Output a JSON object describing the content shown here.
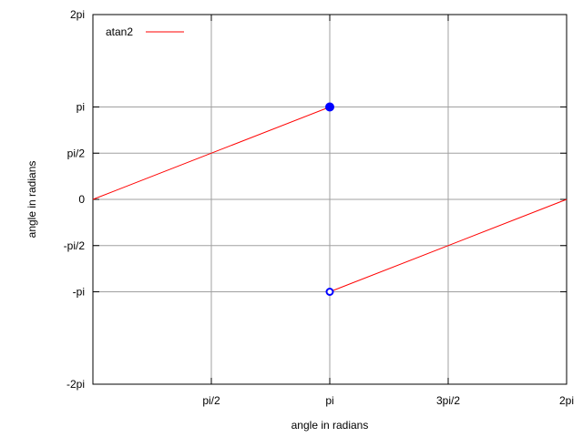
{
  "chart_data": {
    "type": "line",
    "title": "",
    "xlabel": "angle in radians",
    "ylabel": "angle in radians",
    "xlim": [
      0,
      6.283185307
    ],
    "ylim": [
      -6.283185307,
      6.283185307
    ],
    "grid": true,
    "legend_position": "top-left",
    "x_ticks": [
      {
        "value": 1.570796327,
        "label": "pi/2"
      },
      {
        "value": 3.141592654,
        "label": "pi"
      },
      {
        "value": 4.71238898,
        "label": "3pi/2"
      },
      {
        "value": 6.283185307,
        "label": "2pi"
      }
    ],
    "y_ticks": [
      {
        "value": 6.283185307,
        "label": "2pi"
      },
      {
        "value": 3.141592654,
        "label": "pi"
      },
      {
        "value": 1.570796327,
        "label": "pi/2"
      },
      {
        "value": 0,
        "label": "0"
      },
      {
        "value": -1.570796327,
        "label": "-pi/2"
      },
      {
        "value": -3.141592654,
        "label": "-pi"
      },
      {
        "value": -6.283185307,
        "label": "-2pi"
      }
    ],
    "series": [
      {
        "name": "atan2",
        "color": "#ff0000",
        "segments": [
          [
            [
              0,
              0
            ],
            [
              3.141592654,
              3.141592654
            ]
          ],
          [
            [
              3.141592654,
              -3.141592654
            ],
            [
              6.283185307,
              0
            ]
          ]
        ]
      }
    ],
    "markers": [
      {
        "x": 3.141592654,
        "y": 3.141592654,
        "style": "filled",
        "color": "#0000ff"
      },
      {
        "x": 3.141592654,
        "y": -3.141592654,
        "style": "open",
        "color": "#0000ff"
      }
    ]
  }
}
